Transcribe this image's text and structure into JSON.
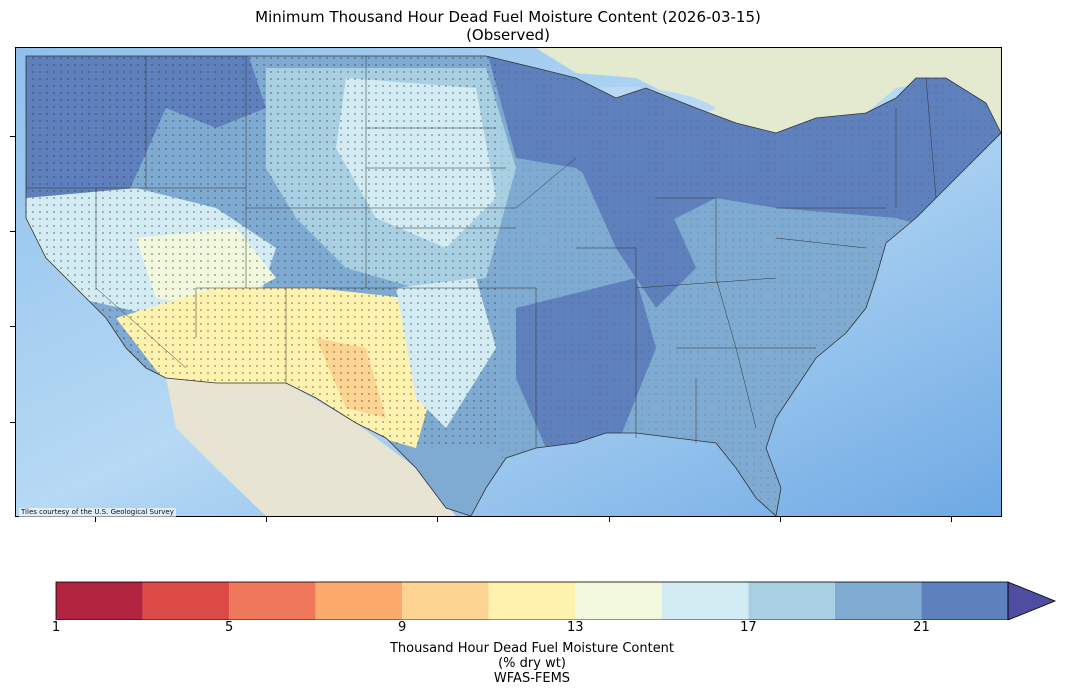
{
  "title": {
    "line1": "Minimum Thousand Hour Dead Fuel Moisture Content (2026-03-15)",
    "line2": "(Observed)"
  },
  "map": {
    "attribution": "Tiles courtesy of the U.S. Geological Survey",
    "legend_min": 1,
    "legend_max": 23,
    "ocean_color": "#9ec9ef",
    "land_color": "#e8e6d8"
  },
  "colorbar": {
    "ticks": [
      "1",
      "5",
      "9",
      "13",
      "17",
      "21"
    ],
    "bins": [
      {
        "from": 1,
        "to": 3,
        "color": "#b2233f"
      },
      {
        "from": 3,
        "to": 5,
        "color": "#dc4a46"
      },
      {
        "from": 5,
        "to": 7,
        "color": "#f0775a"
      },
      {
        "from": 7,
        "to": 9,
        "color": "#fbaa6c"
      },
      {
        "from": 9,
        "to": 11,
        "color": "#fdd491"
      },
      {
        "from": 11,
        "to": 13,
        "color": "#fff2ae"
      },
      {
        "from": 13,
        "to": 15,
        "color": "#f1f8dd"
      },
      {
        "from": 15,
        "to": 17,
        "color": "#d3ecf3"
      },
      {
        "from": 17,
        "to": 19,
        "color": "#a9cfe3"
      },
      {
        "from": 19,
        "to": 21,
        "color": "#7fabd2"
      },
      {
        "from": 21,
        "to": 23,
        "color": "#5e80bd"
      },
      {
        "from": 23,
        "to": null,
        "color": "#4f4da1"
      }
    ],
    "label_line1": "Thousand Hour Dead Fuel Moisture Content",
    "label_line2": "(% dry wt)",
    "label_line3": "WFAS-FEMS"
  }
}
